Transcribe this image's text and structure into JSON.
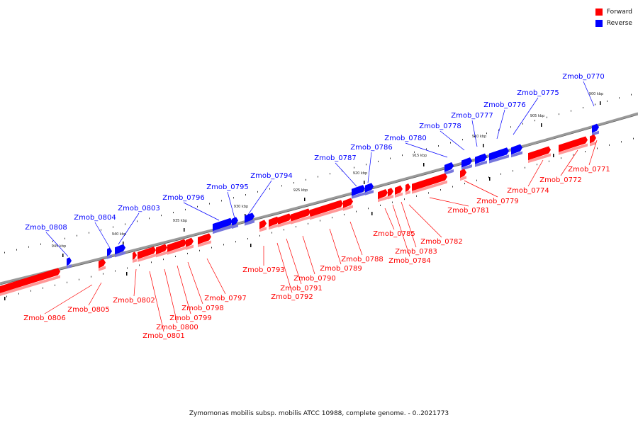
{
  "colors": {
    "forward": "#ff0000",
    "reverse": "#0000ff",
    "backbone": "#999999"
  },
  "legend": [
    {
      "label": "Forward",
      "color": "#ff0000"
    },
    {
      "label": "Reverse",
      "color": "#0000ff"
    }
  ],
  "caption": "Zymomonas mobilis subsp. mobilis ATCC 10988, complete genome. - 0..2021773",
  "scale_labels": [
    "900 kbp",
    "905 kbp",
    "910 kbp",
    "915 kbp",
    "920 kbp",
    "925 kbp",
    "930 kbp",
    "935 kbp",
    "940 kbp",
    "945 kbp"
  ],
  "genes": [
    {
      "name": "Zmob_0770",
      "strand": "reverse"
    },
    {
      "name": "Zmob_0771",
      "strand": "forward"
    },
    {
      "name": "Zmob_0772",
      "strand": "forward"
    },
    {
      "name": "Zmob_0774",
      "strand": "forward"
    },
    {
      "name": "Zmob_0775",
      "strand": "reverse"
    },
    {
      "name": "Zmob_0776",
      "strand": "reverse"
    },
    {
      "name": "Zmob_0777",
      "strand": "reverse"
    },
    {
      "name": "Zmob_0778",
      "strand": "reverse"
    },
    {
      "name": "Zmob_0779",
      "strand": "forward"
    },
    {
      "name": "Zmob_0780",
      "strand": "reverse"
    },
    {
      "name": "Zmob_0781",
      "strand": "forward"
    },
    {
      "name": "Zmob_0782",
      "strand": "forward"
    },
    {
      "name": "Zmob_0783",
      "strand": "forward"
    },
    {
      "name": "Zmob_0784",
      "strand": "forward"
    },
    {
      "name": "Zmob_0785",
      "strand": "forward"
    },
    {
      "name": "Zmob_0786",
      "strand": "reverse"
    },
    {
      "name": "Zmob_0787",
      "strand": "reverse"
    },
    {
      "name": "Zmob_0788",
      "strand": "forward"
    },
    {
      "name": "Zmob_0789",
      "strand": "forward"
    },
    {
      "name": "Zmob_0790",
      "strand": "forward"
    },
    {
      "name": "Zmob_0791",
      "strand": "forward"
    },
    {
      "name": "Zmob_0792",
      "strand": "forward"
    },
    {
      "name": "Zmob_0793",
      "strand": "forward"
    },
    {
      "name": "Zmob_0794",
      "strand": "reverse"
    },
    {
      "name": "Zmob_0795",
      "strand": "reverse"
    },
    {
      "name": "Zmob_0796",
      "strand": "reverse"
    },
    {
      "name": "Zmob_0797",
      "strand": "forward"
    },
    {
      "name": "Zmob_0798",
      "strand": "forward"
    },
    {
      "name": "Zmob_0799",
      "strand": "forward"
    },
    {
      "name": "Zmob_0800",
      "strand": "forward"
    },
    {
      "name": "Zmob_0801",
      "strand": "forward"
    },
    {
      "name": "Zmob_0802",
      "strand": "forward"
    },
    {
      "name": "Zmob_0803",
      "strand": "reverse"
    },
    {
      "name": "Zmob_0804",
      "strand": "reverse"
    },
    {
      "name": "Zmob_0805",
      "strand": "forward"
    },
    {
      "name": "Zmob_0806",
      "strand": "forward"
    },
    {
      "name": "Zmob_0808",
      "strand": "reverse"
    }
  ]
}
